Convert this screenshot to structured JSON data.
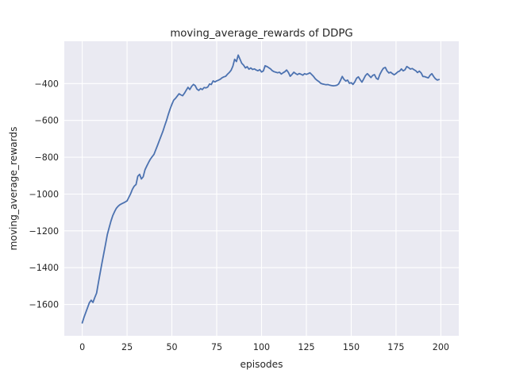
{
  "chart_data": {
    "type": "line",
    "title": "moving_average_rewards of DDPG",
    "xlabel": "episodes",
    "ylabel": "moving_average_rewards",
    "x_ticks": [
      0,
      25,
      50,
      75,
      100,
      125,
      150,
      175,
      200
    ],
    "y_ticks": [
      -400,
      -600,
      -800,
      -1000,
      -1200,
      -1400,
      -1600
    ],
    "xlim": [
      -10,
      210
    ],
    "ylim": [
      -1770,
      -170
    ],
    "grid": true,
    "legend": false,
    "style": {
      "line_color": "#4c72b0",
      "axes_bg": "#eaeaf2",
      "grid_color": "#ffffff",
      "fig_bg": "#ffffff",
      "text_color": "#262626"
    },
    "series": [
      {
        "name": "DDPG",
        "x_start": 0,
        "x_step": 1,
        "values": [
          -1700,
          -1670,
          -1643,
          -1616,
          -1590,
          -1577,
          -1589,
          -1562,
          -1538,
          -1483,
          -1428,
          -1376,
          -1324,
          -1272,
          -1220,
          -1183,
          -1148,
          -1118,
          -1096,
          -1078,
          -1066,
          -1058,
          -1053,
          -1048,
          -1043,
          -1037,
          -1018,
          -998,
          -974,
          -957,
          -948,
          -903,
          -893,
          -918,
          -906,
          -868,
          -848,
          -828,
          -811,
          -797,
          -784,
          -760,
          -735,
          -710,
          -684,
          -658,
          -629,
          -600,
          -568,
          -538,
          -513,
          -490,
          -480,
          -468,
          -455,
          -461,
          -466,
          -452,
          -436,
          -420,
          -432,
          -415,
          -404,
          -411,
          -430,
          -437,
          -427,
          -432,
          -421,
          -423,
          -419,
          -402,
          -405,
          -385,
          -391,
          -385,
          -381,
          -376,
          -368,
          -363,
          -360,
          -349,
          -340,
          -328,
          -305,
          -268,
          -280,
          -245,
          -268,
          -290,
          -300,
          -315,
          -308,
          -322,
          -315,
          -323,
          -320,
          -326,
          -330,
          -324,
          -337,
          -331,
          -303,
          -307,
          -313,
          -320,
          -330,
          -335,
          -338,
          -341,
          -338,
          -348,
          -341,
          -335,
          -326,
          -340,
          -360,
          -350,
          -338,
          -345,
          -351,
          -345,
          -349,
          -354,
          -346,
          -350,
          -346,
          -341,
          -351,
          -361,
          -374,
          -382,
          -389,
          -398,
          -402,
          -404,
          -406,
          -405,
          -408,
          -410,
          -412,
          -411,
          -409,
          -402,
          -383,
          -361,
          -377,
          -386,
          -381,
          -398,
          -395,
          -404,
          -391,
          -371,
          -363,
          -379,
          -392,
          -374,
          -356,
          -346,
          -356,
          -367,
          -355,
          -351,
          -371,
          -377,
          -350,
          -331,
          -316,
          -312,
          -331,
          -342,
          -338,
          -346,
          -352,
          -345,
          -336,
          -332,
          -320,
          -331,
          -325,
          -307,
          -313,
          -321,
          -318,
          -324,
          -330,
          -340,
          -332,
          -342,
          -361,
          -362,
          -366,
          -369,
          -354,
          -346,
          -362,
          -374,
          -381,
          -378
        ]
      }
    ]
  }
}
